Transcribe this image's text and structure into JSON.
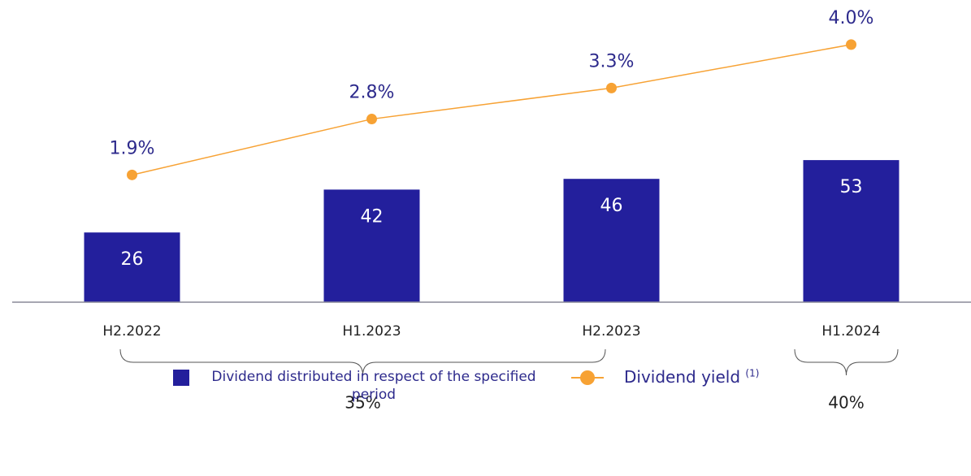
{
  "chart_data": {
    "type": "bar_line",
    "categories": [
      "H2.2022",
      "H1.2023",
      "H2.2023",
      "H1.2024"
    ],
    "series": [
      {
        "name": "Dividend distributed in respect of the specified period",
        "type": "bar",
        "color": "#231f9c",
        "values": [
          26,
          42,
          46,
          53
        ]
      },
      {
        "name": "Dividend yield",
        "legend_note": "(1)",
        "type": "line",
        "axis": "y2",
        "color": "#f7a234",
        "values": [
          1.9,
          2.8,
          3.3,
          4.0
        ],
        "value_labels": [
          "1.9%",
          "2.8%",
          "3.3%",
          "4.0%"
        ]
      }
    ],
    "ylim": [
      0,
      110
    ],
    "y2lim": [
      -0.15,
      4.6
    ],
    "annotations": [
      "35%",
      "40%"
    ],
    "grid": false
  }
}
